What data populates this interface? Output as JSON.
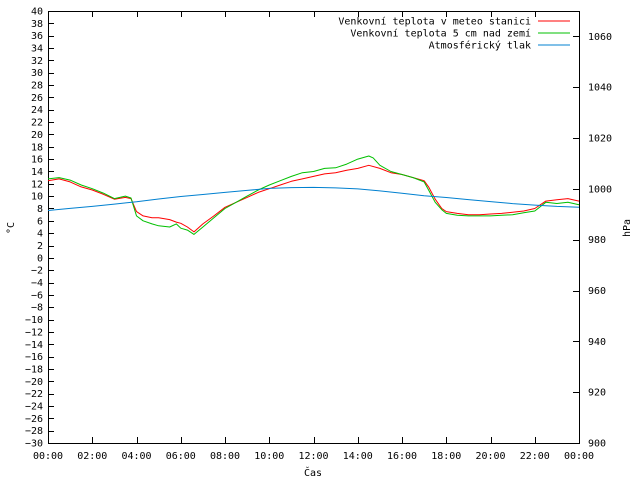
{
  "chart_data": {
    "type": "line",
    "xlabel": "Čas",
    "ylabel": "°C",
    "y2label": "hPa",
    "x_ticks": [
      "00:00",
      "02:00",
      "04:00",
      "06:00",
      "08:00",
      "10:00",
      "12:00",
      "14:00",
      "16:00",
      "18:00",
      "20:00",
      "22:00",
      "00:00"
    ],
    "xlim_hours": [
      0,
      24
    ],
    "ylim": [
      -30,
      40
    ],
    "y_ticks": [
      40,
      38,
      36,
      34,
      32,
      30,
      28,
      26,
      24,
      22,
      20,
      18,
      16,
      14,
      12,
      10,
      8,
      6,
      4,
      2,
      0,
      -2,
      -4,
      -6,
      -8,
      -10,
      -12,
      -14,
      -16,
      -18,
      -20,
      -22,
      -24,
      -26,
      -28,
      -30
    ],
    "y2lim": [
      900,
      1070
    ],
    "y2_ticks": [
      1060,
      1040,
      1020,
      1000,
      980,
      960,
      940,
      920,
      900
    ],
    "grid": false,
    "legend_position": "top-right",
    "series": [
      {
        "name": "Venkovní teplota v meteo stanici",
        "color": "#ff0000",
        "axis": "left",
        "x": [
          0,
          0.5,
          1,
          1.5,
          2,
          2.5,
          3,
          3.5,
          3.75,
          4,
          4.3,
          4.7,
          5,
          5.5,
          5.8,
          6,
          6.3,
          6.6,
          7,
          7.5,
          8,
          8.5,
          9,
          9.5,
          10,
          10.5,
          11,
          11.5,
          12,
          12.5,
          13,
          13.5,
          14,
          14.5,
          15,
          15.5,
          16,
          16.5,
          17,
          17.2,
          17.5,
          17.8,
          18,
          18.5,
          19,
          19.5,
          20,
          20.5,
          21,
          21.5,
          22,
          22.5,
          23,
          23.5,
          24
        ],
        "y": [
          12.5,
          12.8,
          12.3,
          11.5,
          11,
          10.3,
          9.5,
          9.8,
          9.6,
          7.5,
          6.8,
          6.5,
          6.5,
          6.2,
          5.8,
          5.6,
          5,
          4.2,
          5.5,
          6.8,
          8.2,
          9,
          9.8,
          10.6,
          11.2,
          11.8,
          12.4,
          12.8,
          13.2,
          13.6,
          13.8,
          14.2,
          14.5,
          15,
          14.5,
          13.8,
          13.5,
          13,
          12.5,
          11.5,
          9.5,
          8,
          7.5,
          7.2,
          7,
          7,
          7.1,
          7.2,
          7.4,
          7.6,
          8,
          9.2,
          9.4,
          9.6,
          9.2
        ]
      },
      {
        "name": "Venkovní teplota 5 cm nad zemí",
        "color": "#00c000",
        "axis": "left",
        "x": [
          0,
          0.5,
          1,
          1.5,
          2,
          2.5,
          3,
          3.5,
          3.75,
          4,
          4.3,
          4.7,
          5,
          5.5,
          5.8,
          6,
          6.3,
          6.6,
          7,
          7.5,
          8,
          8.5,
          9,
          9.5,
          10,
          10.5,
          11,
          11.5,
          12,
          12.5,
          13,
          13.5,
          14,
          14.5,
          14.7,
          15,
          15.5,
          16,
          16.5,
          17,
          17.2,
          17.5,
          17.8,
          18,
          18.5,
          19,
          19.5,
          20,
          20.5,
          21,
          21.5,
          22,
          22.5,
          23,
          23.5,
          24
        ],
        "y": [
          12.8,
          13,
          12.6,
          11.8,
          11.2,
          10.5,
          9.6,
          10,
          9.7,
          6.8,
          6,
          5.5,
          5.2,
          5,
          5.5,
          4.8,
          4.5,
          3.8,
          5,
          6.5,
          8,
          9,
          10,
          11,
          11.8,
          12.5,
          13.2,
          13.8,
          14,
          14.5,
          14.6,
          15.2,
          16,
          16.5,
          16.2,
          15,
          14,
          13.5,
          13,
          12.3,
          11,
          9,
          7.8,
          7.2,
          6.9,
          6.8,
          6.8,
          6.8,
          6.9,
          7,
          7.3,
          7.6,
          9,
          8.8,
          9,
          8.6
        ]
      },
      {
        "name": "Atmosférický tlak",
        "color": "#0080d0",
        "axis": "right",
        "x": [
          0,
          1,
          2,
          3,
          4,
          5,
          6,
          7,
          8,
          9,
          10,
          11,
          12,
          13,
          14,
          15,
          16,
          17,
          18,
          19,
          20,
          21,
          22,
          23,
          24
        ],
        "y": [
          991.5,
          992.3,
          993.1,
          994,
          994.9,
          996,
          997,
          997.8,
          998.6,
          999.4,
          1000.2,
          1000.5,
          1000.6,
          1000.4,
          1000,
          999.2,
          998.3,
          997.3,
          996.6,
          995.8,
          995,
          994.2,
          993.6,
          993.1,
          992.8
        ]
      }
    ]
  }
}
